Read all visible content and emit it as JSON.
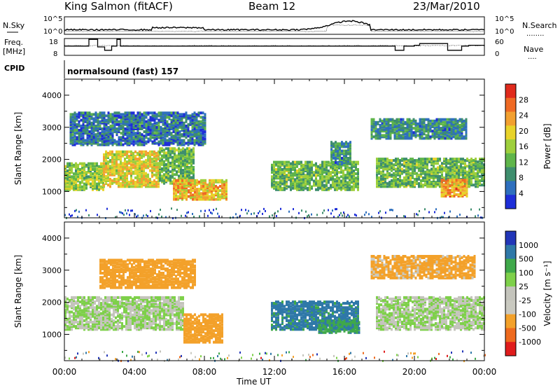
{
  "header": {
    "station": "King Salmon (fitACF)",
    "beam": "Beam 12",
    "date": "23/Mar/2010"
  },
  "side_labels": {
    "nsky": "N.Sky",
    "nsearch": "N.Search",
    "nsearch_dots": "........",
    "freq_line1": "Freq.",
    "freq_line2": "[MHz]",
    "nave": "Nave",
    "nave_dots": "....",
    "cpid": "CPID",
    "cpid_value": "normalsound (fast) 157"
  },
  "strip_ticks": {
    "noise_left": [
      "10^5",
      "10^0"
    ],
    "noise_right": [
      "10^5",
      "10^0"
    ],
    "freq_left": [
      "18",
      "8"
    ],
    "nave_right": [
      "60",
      "0"
    ]
  },
  "colors": {
    "power_scale": [
      "#1e2ed8",
      "#2e6fbe",
      "#3e8e6e",
      "#5fb54a",
      "#9ecf3c",
      "#e8d32a",
      "#f2a030",
      "#ef6a24",
      "#e02a1c"
    ],
    "velocity_scale": [
      "#e01c1c",
      "#ee6a1e",
      "#f3a12a",
      "#c9c9c0",
      "#c4c4bc",
      "#7ed04a",
      "#3fa84a",
      "#2f78a8",
      "#2236b8"
    ]
  },
  "chart_data": [
    {
      "type": "heatmap",
      "title": "",
      "panel": "power",
      "ylabel": "Slant Range [km]",
      "xlabel": "Time UT",
      "x_ticks": [
        "00:00",
        "04:00",
        "08:00",
        "12:00",
        "16:00",
        "20:00",
        "00:00"
      ],
      "y_ticks": [
        "1000",
        "2000",
        "3000",
        "4000"
      ],
      "ylim": [
        180,
        4500
      ],
      "xlim_hours": [
        0,
        24
      ],
      "colorbar_label": "Power [dB]",
      "colorbar_ticks": [
        "4",
        "8",
        "12",
        "16",
        "20",
        "24",
        "28"
      ],
      "colorbar_range": [
        0,
        30
      ],
      "regions": [
        {
          "t0": 0.0,
          "t1": 2.2,
          "r0": 1100,
          "r1": 1950,
          "level": 14
        },
        {
          "t0": 2.2,
          "t1": 5.4,
          "r0": 1200,
          "r1": 2300,
          "level": 18
        },
        {
          "t0": 5.4,
          "t1": 7.4,
          "r0": 1300,
          "r1": 2400,
          "level": 12
        },
        {
          "t0": 6.2,
          "t1": 9.3,
          "r0": 800,
          "r1": 1400,
          "level": 20
        },
        {
          "t0": 11.8,
          "t1": 16.8,
          "r0": 1100,
          "r1": 2000,
          "level": 12
        },
        {
          "t0": 15.2,
          "t1": 16.4,
          "r0": 1900,
          "r1": 2600,
          "level": 8
        },
        {
          "t0": 17.8,
          "t1": 24.0,
          "r0": 1200,
          "r1": 2100,
          "level": 12
        },
        {
          "t0": 21.5,
          "t1": 23.0,
          "r0": 900,
          "r1": 1400,
          "level": 22
        },
        {
          "t0": 0.3,
          "t1": 8.0,
          "r0": 2500,
          "r1": 3500,
          "level": 6
        },
        {
          "t0": 17.5,
          "t1": 23.0,
          "r0": 2700,
          "r1": 3300,
          "level": 8
        }
      ]
    },
    {
      "type": "heatmap",
      "title": "",
      "panel": "velocity",
      "ylabel": "Slant Range [km]",
      "xlabel": "Time UT",
      "x_ticks": [
        "00:00",
        "04:00",
        "08:00",
        "12:00",
        "16:00",
        "20:00",
        "00:00"
      ],
      "y_ticks": [
        "1000",
        "2000",
        "3000",
        "4000"
      ],
      "ylim": [
        180,
        4500
      ],
      "xlim_hours": [
        0,
        24
      ],
      "colorbar_label": "Velocity [m s⁻¹]",
      "colorbar_ticks": [
        "1000",
        "500",
        "100",
        "25",
        "-25",
        "-100",
        "-500",
        "-1000"
      ],
      "regions": [
        {
          "t0": 0.0,
          "t1": 6.8,
          "r0": 1200,
          "r1": 2200,
          "velocity": 0
        },
        {
          "t0": 6.8,
          "t1": 9.0,
          "r0": 800,
          "r1": 1700,
          "velocity": -200
        },
        {
          "t0": 11.8,
          "t1": 16.8,
          "r0": 1200,
          "r1": 2100,
          "velocity": 150
        },
        {
          "t0": 14.5,
          "t1": 16.8,
          "r0": 1100,
          "r1": 1500,
          "velocity": 80
        },
        {
          "t0": 17.8,
          "t1": 24.0,
          "r0": 1200,
          "r1": 2200,
          "velocity": 0
        },
        {
          "t0": 2.0,
          "t1": 7.5,
          "r0": 2500,
          "r1": 3400,
          "velocity": -300
        },
        {
          "t0": 17.5,
          "t1": 23.5,
          "r0": 2800,
          "r1": 3500,
          "velocity": -150
        }
      ]
    }
  ]
}
